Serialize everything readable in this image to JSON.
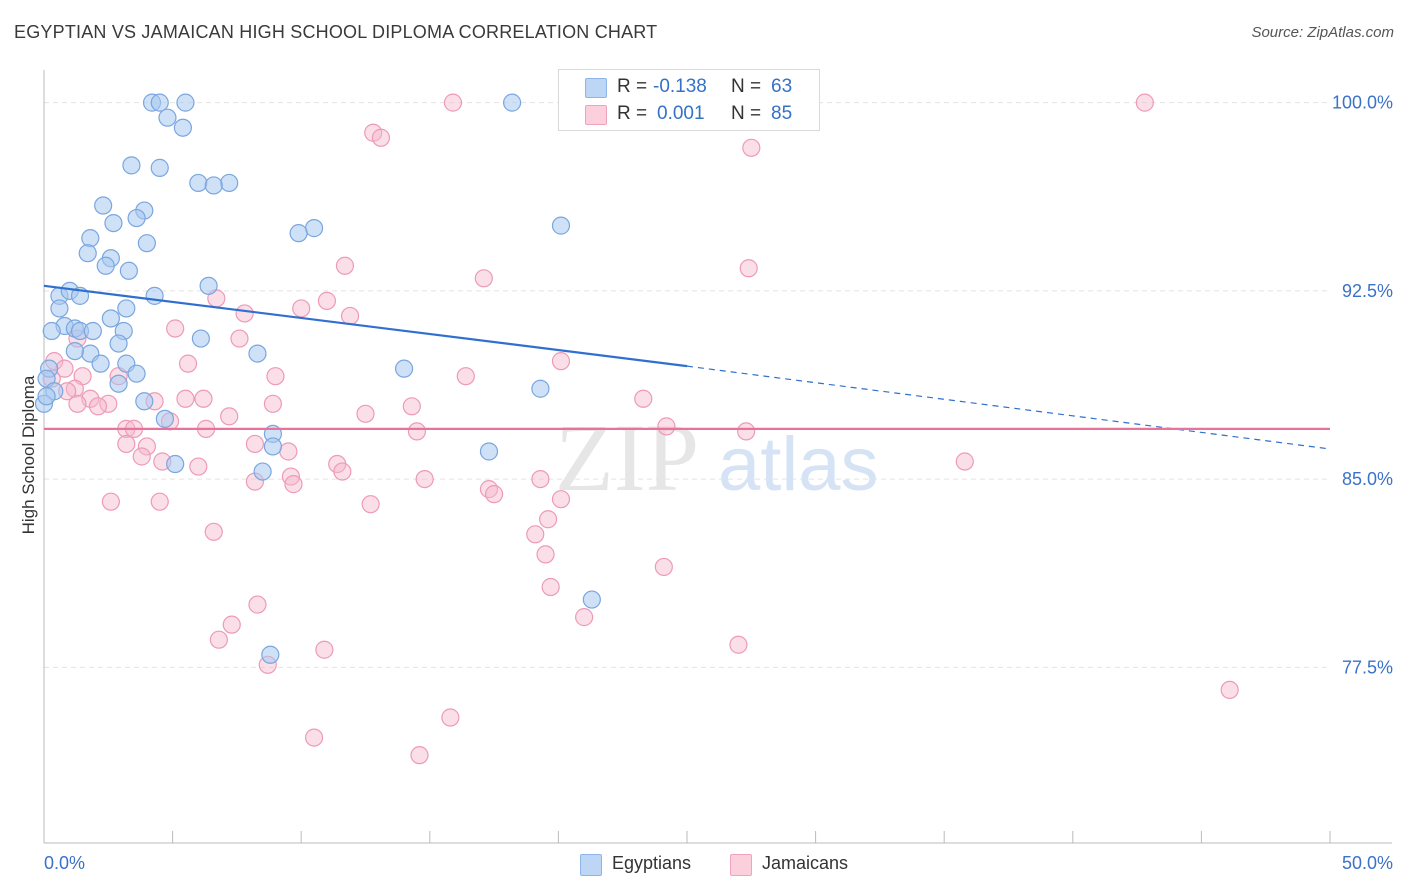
{
  "title": "EGYPTIAN VS JAMAICAN HIGH SCHOOL DIPLOMA CORRELATION CHART",
  "source": "Source: ZipAtlas.com",
  "watermark": {
    "zip": "ZIP",
    "atlas": "atlas"
  },
  "legend": {
    "r_label": "R =",
    "n_label": "N =",
    "rows": [
      {
        "r": "-0.138",
        "n": "63"
      },
      {
        "r": "0.001",
        "n": "85"
      }
    ]
  },
  "chart_data": {
    "type": "scatter",
    "title": "EGYPTIAN VS JAMAICAN HIGH SCHOOL DIPLOMA CORRELATION CHART",
    "xlabel": "",
    "ylabel": "High School Diploma",
    "xlim": [
      0,
      50
    ],
    "ylim": [
      70.5,
      101.3
    ],
    "x_tick_labels": [
      "0.0%",
      "50.0%"
    ],
    "y_ticks": [
      77.5,
      85.0,
      92.5,
      100.0
    ],
    "y_tick_labels": [
      "77.5%",
      "85.0%",
      "92.5%",
      "100.0%"
    ],
    "grid": true,
    "legend_position": "bottom",
    "colors": {
      "Egyptians": "#a8c8f0",
      "Jamaicans": "#f5b8cc",
      "egypt_line": "#2f6fd0",
      "jamaica_line": "#e8729a",
      "axis_text": "#3a72c8"
    },
    "series": [
      {
        "name": "Egyptians",
        "points": [
          [
            4.2,
            100.0
          ],
          [
            4.5,
            100.0
          ],
          [
            5.5,
            100.0
          ],
          [
            18.2,
            100.0
          ],
          [
            4.8,
            99.4
          ],
          [
            5.4,
            99.0
          ],
          [
            3.4,
            97.5
          ],
          [
            4.5,
            97.4
          ],
          [
            6.0,
            96.8
          ],
          [
            7.2,
            96.8
          ],
          [
            6.6,
            96.7
          ],
          [
            2.3,
            95.9
          ],
          [
            3.9,
            95.7
          ],
          [
            3.6,
            95.4
          ],
          [
            2.7,
            95.2
          ],
          [
            20.1,
            95.1
          ],
          [
            10.5,
            95.0
          ],
          [
            9.9,
            94.8
          ],
          [
            1.8,
            94.6
          ],
          [
            4.0,
            94.4
          ],
          [
            1.7,
            94.0
          ],
          [
            2.6,
            93.8
          ],
          [
            3.3,
            93.3
          ],
          [
            2.4,
            93.5
          ],
          [
            6.4,
            92.7
          ],
          [
            0.6,
            92.3
          ],
          [
            1.0,
            92.5
          ],
          [
            1.4,
            92.3
          ],
          [
            4.3,
            92.3
          ],
          [
            0.6,
            91.8
          ],
          [
            3.2,
            91.8
          ],
          [
            2.6,
            91.4
          ],
          [
            0.8,
            91.1
          ],
          [
            1.2,
            91.0
          ],
          [
            1.4,
            90.9
          ],
          [
            1.9,
            90.9
          ],
          [
            3.1,
            90.9
          ],
          [
            0.3,
            90.9
          ],
          [
            6.1,
            90.6
          ],
          [
            2.9,
            90.4
          ],
          [
            1.8,
            90.0
          ],
          [
            8.3,
            90.0
          ],
          [
            1.2,
            90.1
          ],
          [
            2.2,
            89.6
          ],
          [
            3.2,
            89.6
          ],
          [
            14.0,
            89.4
          ],
          [
            3.6,
            89.2
          ],
          [
            0.2,
            89.4
          ],
          [
            0.1,
            89.0
          ],
          [
            2.9,
            88.8
          ],
          [
            0.4,
            88.5
          ],
          [
            19.3,
            88.6
          ],
          [
            3.9,
            88.1
          ],
          [
            4.7,
            87.4
          ],
          [
            8.9,
            86.8
          ],
          [
            8.9,
            86.3
          ],
          [
            17.3,
            86.1
          ],
          [
            8.5,
            85.3
          ],
          [
            5.1,
            85.6
          ],
          [
            0.0,
            88.0
          ],
          [
            0.1,
            88.3
          ],
          [
            21.3,
            80.2
          ],
          [
            8.8,
            78.0
          ]
        ]
      },
      {
        "name": "Jamaicans",
        "points": [
          [
            15.9,
            100.0
          ],
          [
            42.8,
            100.0
          ],
          [
            25.6,
            100.0
          ],
          [
            12.8,
            98.8
          ],
          [
            13.1,
            98.6
          ],
          [
            27.5,
            98.2
          ],
          [
            11.7,
            93.5
          ],
          [
            17.1,
            93.0
          ],
          [
            27.4,
            93.4
          ],
          [
            6.7,
            92.2
          ],
          [
            11.0,
            92.1
          ],
          [
            10.0,
            91.8
          ],
          [
            7.8,
            91.6
          ],
          [
            11.9,
            91.5
          ],
          [
            5.1,
            91.0
          ],
          [
            7.6,
            90.6
          ],
          [
            1.3,
            90.6
          ],
          [
            0.4,
            89.7
          ],
          [
            0.8,
            89.4
          ],
          [
            5.6,
            89.6
          ],
          [
            20.1,
            89.7
          ],
          [
            1.5,
            89.1
          ],
          [
            0.3,
            89.0
          ],
          [
            9.0,
            89.1
          ],
          [
            16.4,
            89.1
          ],
          [
            2.9,
            89.1
          ],
          [
            1.2,
            88.6
          ],
          [
            1.8,
            88.2
          ],
          [
            2.5,
            88.0
          ],
          [
            0.9,
            88.5
          ],
          [
            4.3,
            88.1
          ],
          [
            5.5,
            88.2
          ],
          [
            6.2,
            88.2
          ],
          [
            1.3,
            88.0
          ],
          [
            2.1,
            87.9
          ],
          [
            8.9,
            88.0
          ],
          [
            14.3,
            87.9
          ],
          [
            23.3,
            88.2
          ],
          [
            7.2,
            87.5
          ],
          [
            4.9,
            87.3
          ],
          [
            12.5,
            87.6
          ],
          [
            3.2,
            87.0
          ],
          [
            3.5,
            87.0
          ],
          [
            6.3,
            87.0
          ],
          [
            14.5,
            86.9
          ],
          [
            24.2,
            87.1
          ],
          [
            27.3,
            86.9
          ],
          [
            3.2,
            86.4
          ],
          [
            8.2,
            86.4
          ],
          [
            4.0,
            86.3
          ],
          [
            9.5,
            86.1
          ],
          [
            3.8,
            85.9
          ],
          [
            4.6,
            85.7
          ],
          [
            6.0,
            85.5
          ],
          [
            11.4,
            85.6
          ],
          [
            11.6,
            85.3
          ],
          [
            9.6,
            85.1
          ],
          [
            14.8,
            85.0
          ],
          [
            19.3,
            85.0
          ],
          [
            8.2,
            84.9
          ],
          [
            9.7,
            84.8
          ],
          [
            17.3,
            84.6
          ],
          [
            35.8,
            85.7
          ],
          [
            17.5,
            84.4
          ],
          [
            2.6,
            84.1
          ],
          [
            4.5,
            84.1
          ],
          [
            12.7,
            84.0
          ],
          [
            20.1,
            84.2
          ],
          [
            19.6,
            83.4
          ],
          [
            6.6,
            82.9
          ],
          [
            19.1,
            82.8
          ],
          [
            19.5,
            82.0
          ],
          [
            24.1,
            81.5
          ],
          [
            19.7,
            80.7
          ],
          [
            8.3,
            80.0
          ],
          [
            7.3,
            79.2
          ],
          [
            21.0,
            79.5
          ],
          [
            6.8,
            78.6
          ],
          [
            27.0,
            78.4
          ],
          [
            10.9,
            78.2
          ],
          [
            8.7,
            77.6
          ],
          [
            46.1,
            76.6
          ],
          [
            15.8,
            75.5
          ],
          [
            10.5,
            74.7
          ],
          [
            14.6,
            74.0
          ]
        ]
      }
    ],
    "trend_lines": [
      {
        "series": "Egyptians",
        "x0": 0,
        "y0": 92.7,
        "x1": 25.0,
        "y1": 89.5,
        "dashed_to": [
          50,
          86.2
        ]
      },
      {
        "series": "Jamaicans",
        "x0": 0,
        "y0": 87.0,
        "x1": 50,
        "y1": 87.0
      }
    ]
  },
  "bottom_legend": [
    "Egyptians",
    "Jamaicans"
  ]
}
